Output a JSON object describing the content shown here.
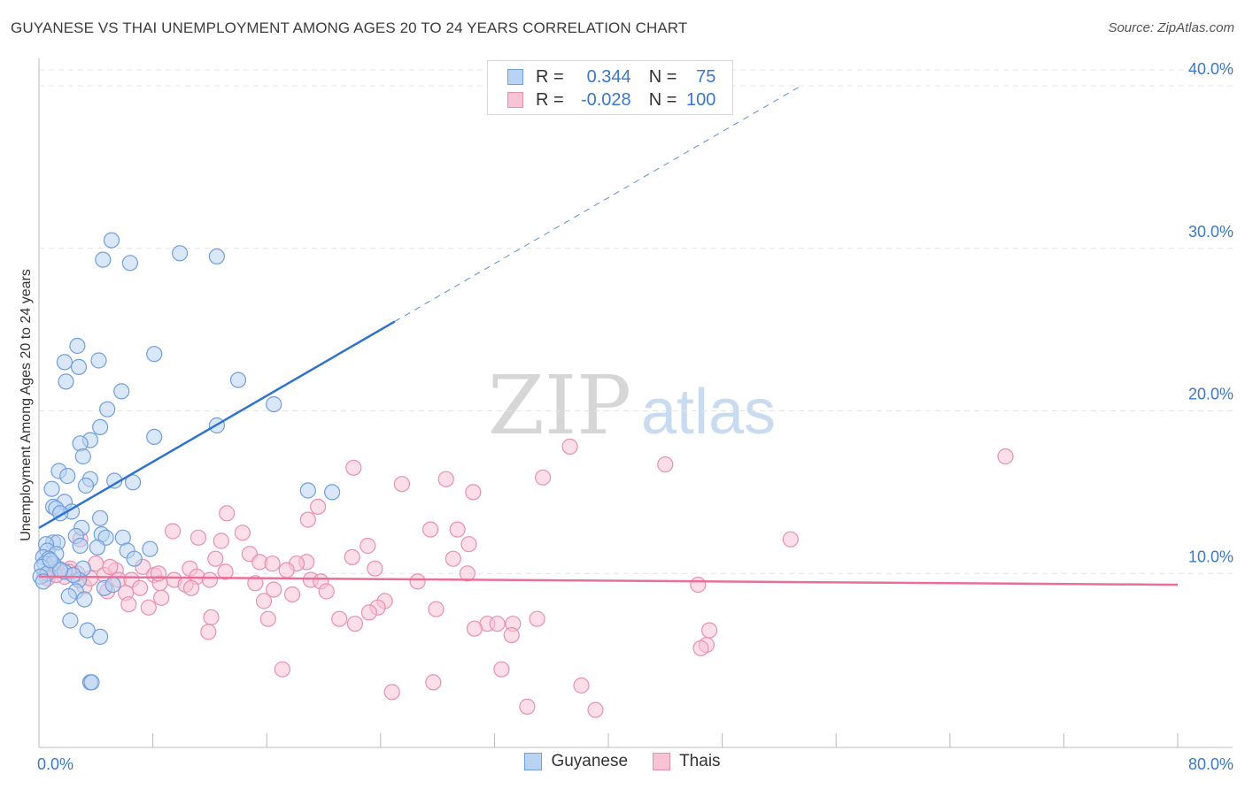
{
  "title": "GUYANESE VS THAI UNEMPLOYMENT AMONG AGES 20 TO 24 YEARS CORRELATION CHART",
  "source": "Source: ZipAtlas.com",
  "watermark": {
    "zip": "ZIP",
    "atlas": "atlas"
  },
  "legend": {
    "r_label": "R =",
    "n_label": "N =",
    "rows": [
      {
        "r": "0.344",
        "n": "75"
      },
      {
        "r": "-0.028",
        "n": "100"
      }
    ]
  },
  "bottom_legend": [
    "Guyanese",
    "Thais"
  ],
  "colors": {
    "guyanese_fill": "#b9d3f2",
    "guyanese_stroke": "#6f9fdc",
    "guyanese_line": "#2f73cc",
    "thais_fill": "#f7c3d5",
    "thais_stroke": "#e890b0",
    "thais_line": "#e96f9a",
    "axis_text": "#3a78c9"
  },
  "chart_data": {
    "type": "scatter",
    "title": "GUYANESE VS THAI UNEMPLOYMENT AMONG AGES 20 TO 24 YEARS CORRELATION CHART",
    "xlabel": "",
    "ylabel": "Unemployment Among Ages 20 to 24 years",
    "xlim": [
      0,
      80
    ],
    "ylim": [
      0,
      40
    ],
    "x_tick_labels": [
      "0.0%",
      "80.0%"
    ],
    "y_ticks": [
      10,
      20,
      30,
      40
    ],
    "y_tick_labels": [
      "10.0%",
      "20.0%",
      "30.0%",
      "40.0%"
    ],
    "grid": true,
    "legend_position": "top-center",
    "series": [
      {
        "name": "Guyanese",
        "r": 0.344,
        "n": 75,
        "trend": {
          "x0": 0,
          "y0": 12.8,
          "x1": 25,
          "y1": 25.5,
          "dashed_to_x": 53.5
        },
        "points": [
          [
            5.1,
            30.5
          ],
          [
            4.5,
            29.3
          ],
          [
            6.4,
            29.1
          ],
          [
            9.9,
            29.7
          ],
          [
            12.5,
            29.5
          ],
          [
            2.7,
            24.0
          ],
          [
            1.8,
            23.0
          ],
          [
            4.2,
            23.1
          ],
          [
            2.8,
            22.7
          ],
          [
            8.1,
            23.5
          ],
          [
            1.9,
            21.8
          ],
          [
            14.0,
            21.9
          ],
          [
            5.8,
            21.2
          ],
          [
            4.8,
            20.1
          ],
          [
            16.5,
            20.4
          ],
          [
            4.3,
            19.0
          ],
          [
            12.5,
            19.1
          ],
          [
            8.1,
            18.4
          ],
          [
            3.6,
            18.2
          ],
          [
            2.9,
            18.0
          ],
          [
            3.1,
            17.2
          ],
          [
            1.4,
            16.3
          ],
          [
            2.0,
            16.0
          ],
          [
            3.6,
            15.8
          ],
          [
            5.3,
            15.7
          ],
          [
            6.6,
            15.6
          ],
          [
            3.3,
            15.4
          ],
          [
            0.9,
            15.2
          ],
          [
            18.9,
            15.1
          ],
          [
            20.6,
            15.0
          ],
          [
            1.8,
            14.4
          ],
          [
            1.0,
            14.1
          ],
          [
            1.2,
            14.0
          ],
          [
            2.3,
            13.8
          ],
          [
            1.5,
            13.7
          ],
          [
            4.3,
            13.4
          ],
          [
            3.0,
            12.8
          ],
          [
            2.6,
            12.3
          ],
          [
            4.4,
            12.4
          ],
          [
            5.9,
            12.2
          ],
          [
            4.7,
            12.2
          ],
          [
            1.0,
            11.9
          ],
          [
            1.3,
            11.9
          ],
          [
            0.5,
            11.8
          ],
          [
            2.9,
            11.7
          ],
          [
            4.1,
            11.6
          ],
          [
            6.2,
            11.4
          ],
          [
            7.8,
            11.5
          ],
          [
            0.6,
            11.4
          ],
          [
            1.2,
            11.2
          ],
          [
            0.3,
            11.0
          ],
          [
            0.7,
            10.9
          ],
          [
            0.4,
            10.6
          ],
          [
            6.7,
            10.9
          ],
          [
            1.0,
            10.6
          ],
          [
            0.2,
            10.4
          ],
          [
            3.1,
            10.3
          ],
          [
            0.6,
            10.0
          ],
          [
            1.8,
            10.1
          ],
          [
            0.1,
            9.8
          ],
          [
            2.8,
            9.6
          ],
          [
            0.3,
            9.5
          ],
          [
            4.6,
            9.1
          ],
          [
            2.6,
            8.9
          ],
          [
            2.1,
            8.6
          ],
          [
            3.2,
            8.4
          ],
          [
            2.2,
            7.1
          ],
          [
            3.4,
            6.5
          ],
          [
            4.3,
            6.1
          ],
          [
            3.6,
            3.3
          ],
          [
            3.7,
            3.3
          ],
          [
            2.4,
            9.9
          ],
          [
            1.5,
            10.2
          ],
          [
            5.2,
            9.3
          ],
          [
            0.8,
            10.8
          ]
        ]
      },
      {
        "name": "Thais",
        "r": -0.028,
        "n": 100,
        "trend": {
          "x0": 0,
          "y0": 9.8,
          "x1": 80,
          "y1": 9.3
        },
        "points": [
          [
            37.3,
            17.8
          ],
          [
            67.9,
            17.2
          ],
          [
            44.0,
            16.7
          ],
          [
            22.1,
            16.5
          ],
          [
            35.4,
            15.9
          ],
          [
            28.6,
            15.8
          ],
          [
            25.5,
            15.5
          ],
          [
            30.5,
            15.0
          ],
          [
            19.6,
            14.1
          ],
          [
            13.2,
            13.7
          ],
          [
            18.9,
            13.3
          ],
          [
            27.5,
            12.7
          ],
          [
            29.4,
            12.7
          ],
          [
            9.4,
            12.6
          ],
          [
            14.3,
            12.5
          ],
          [
            52.8,
            12.1
          ],
          [
            11.2,
            12.2
          ],
          [
            12.8,
            12.0
          ],
          [
            2.9,
            12.1
          ],
          [
            30.2,
            11.8
          ],
          [
            23.1,
            11.7
          ],
          [
            14.8,
            11.2
          ],
          [
            22.0,
            11.0
          ],
          [
            29.1,
            10.9
          ],
          [
            12.4,
            10.9
          ],
          [
            18.8,
            10.7
          ],
          [
            18.1,
            10.6
          ],
          [
            15.5,
            10.7
          ],
          [
            16.4,
            10.6
          ],
          [
            4.0,
            10.6
          ],
          [
            1.0,
            10.5
          ],
          [
            7.3,
            10.4
          ],
          [
            2.2,
            10.3
          ],
          [
            1.4,
            10.3
          ],
          [
            10.6,
            10.3
          ],
          [
            23.6,
            10.3
          ],
          [
            17.4,
            10.2
          ],
          [
            5.4,
            10.2
          ],
          [
            2.7,
            10.0
          ],
          [
            13.1,
            10.1
          ],
          [
            30.1,
            10.0
          ],
          [
            4.6,
            9.9
          ],
          [
            8.1,
            9.9
          ],
          [
            11.1,
            9.8
          ],
          [
            1.8,
            9.8
          ],
          [
            0.6,
            9.7
          ],
          [
            5.6,
            9.6
          ],
          [
            6.5,
            9.6
          ],
          [
            9.5,
            9.6
          ],
          [
            19.1,
            9.6
          ],
          [
            26.6,
            9.5
          ],
          [
            19.8,
            9.5
          ],
          [
            8.5,
            9.4
          ],
          [
            15.2,
            9.4
          ],
          [
            10.3,
            9.3
          ],
          [
            3.2,
            9.2
          ],
          [
            7.1,
            9.1
          ],
          [
            10.7,
            9.1
          ],
          [
            46.3,
            9.3
          ],
          [
            4.8,
            8.9
          ],
          [
            16.5,
            9.0
          ],
          [
            20.2,
            8.9
          ],
          [
            6.1,
            8.8
          ],
          [
            17.8,
            8.7
          ],
          [
            8.6,
            8.5
          ],
          [
            15.8,
            8.3
          ],
          [
            24.3,
            8.3
          ],
          [
            6.3,
            8.1
          ],
          [
            7.7,
            7.9
          ],
          [
            23.8,
            7.9
          ],
          [
            27.9,
            7.8
          ],
          [
            23.2,
            7.6
          ],
          [
            12.1,
            7.3
          ],
          [
            16.1,
            7.2
          ],
          [
            21.1,
            7.2
          ],
          [
            35.0,
            7.2
          ],
          [
            22.2,
            6.9
          ],
          [
            31.5,
            6.9
          ],
          [
            32.2,
            6.9
          ],
          [
            33.3,
            6.9
          ],
          [
            30.6,
            6.6
          ],
          [
            47.1,
            6.5
          ],
          [
            11.9,
            6.4
          ],
          [
            33.2,
            6.2
          ],
          [
            46.9,
            5.6
          ],
          [
            46.5,
            5.4
          ],
          [
            17.1,
            4.1
          ],
          [
            32.5,
            4.1
          ],
          [
            27.7,
            3.3
          ],
          [
            38.1,
            3.1
          ],
          [
            24.8,
            2.7
          ],
          [
            34.3,
            1.8
          ],
          [
            39.1,
            1.6
          ],
          [
            8.4,
            10.0
          ],
          [
            12.0,
            9.6
          ],
          [
            1.2,
            9.9
          ],
          [
            2.1,
            10.1
          ],
          [
            3.6,
            9.7
          ],
          [
            0.4,
            9.9
          ],
          [
            5.0,
            10.4
          ]
        ]
      }
    ]
  }
}
